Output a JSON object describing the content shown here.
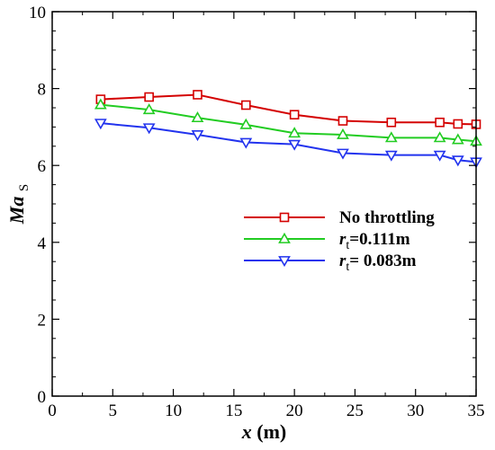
{
  "chart_data": {
    "type": "line",
    "xlabel": {
      "var": "x",
      "unit": "(m)"
    },
    "ylabel": {
      "base": "Ma",
      "sub": "S"
    },
    "xlim": [
      0,
      35
    ],
    "ylim": [
      0,
      10
    ],
    "xticks": [
      "0",
      "5",
      "10",
      "15",
      "20",
      "25",
      "30",
      "35"
    ],
    "yticks": [
      "0",
      "2",
      "4",
      "6",
      "8",
      "10"
    ],
    "grid": false,
    "legend_position": "center-right",
    "series": [
      {
        "name": "No throttling",
        "label_parts": [
          "No throttling"
        ],
        "color": "#d40000",
        "marker": "square",
        "x": [
          4,
          8,
          12,
          16,
          20,
          24,
          28,
          32,
          33.5,
          35
        ],
        "y": [
          7.72,
          7.78,
          7.84,
          7.57,
          7.32,
          7.16,
          7.12,
          7.12,
          7.08,
          7.07
        ]
      },
      {
        "name": "rt=0.111m",
        "label_parts": [
          "r",
          "t",
          "=0.111m"
        ],
        "color": "#22cc22",
        "marker": "triangle-up",
        "x": [
          4,
          8,
          12,
          16,
          20,
          24,
          28,
          32,
          33.5,
          35
        ],
        "y": [
          7.58,
          7.45,
          7.24,
          7.06,
          6.84,
          6.8,
          6.72,
          6.72,
          6.67,
          6.63
        ]
      },
      {
        "name": "rt= 0.083m",
        "label_parts": [
          "r",
          "t",
          "= 0.083m"
        ],
        "color": "#2233ee",
        "marker": "triangle-down",
        "x": [
          4,
          8,
          12,
          16,
          20,
          24,
          28,
          32,
          33.5,
          35
        ],
        "y": [
          7.1,
          6.98,
          6.8,
          6.6,
          6.55,
          6.32,
          6.27,
          6.27,
          6.14,
          6.09
        ]
      }
    ]
  }
}
